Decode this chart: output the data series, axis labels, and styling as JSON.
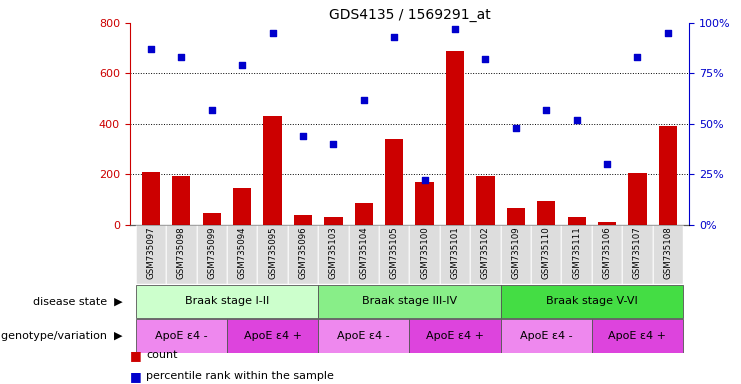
{
  "title": "GDS4135 / 1569291_at",
  "samples": [
    "GSM735097",
    "GSM735098",
    "GSM735099",
    "GSM735094",
    "GSM735095",
    "GSM735096",
    "GSM735103",
    "GSM735104",
    "GSM735105",
    "GSM735100",
    "GSM735101",
    "GSM735102",
    "GSM735109",
    "GSM735110",
    "GSM735111",
    "GSM735106",
    "GSM735107",
    "GSM735108"
  ],
  "counts": [
    210,
    195,
    45,
    145,
    430,
    40,
    30,
    85,
    340,
    170,
    690,
    195,
    65,
    95,
    30,
    10,
    205,
    390
  ],
  "percentile": [
    87,
    83,
    57,
    79,
    95,
    44,
    40,
    62,
    93,
    22,
    97,
    82,
    48,
    57,
    52,
    30,
    83,
    95
  ],
  "ylim_left": [
    0,
    800
  ],
  "ylim_right": [
    0,
    100
  ],
  "yticks_left": [
    0,
    200,
    400,
    600,
    800
  ],
  "yticks_right": [
    0,
    25,
    50,
    75,
    100
  ],
  "bar_color": "#cc0000",
  "dot_color": "#0000cc",
  "bg_color": "#ffffff",
  "disease_state_groups": [
    {
      "label": "Braak stage I-II",
      "start": 0,
      "end": 6,
      "color": "#ccffcc"
    },
    {
      "label": "Braak stage III-IV",
      "start": 6,
      "end": 12,
      "color": "#88ee88"
    },
    {
      "label": "Braak stage V-VI",
      "start": 12,
      "end": 18,
      "color": "#44dd44"
    }
  ],
  "genotype_groups": [
    {
      "label": "ApoE ε4 -",
      "start": 0,
      "end": 3,
      "color": "#ee88ee"
    },
    {
      "label": "ApoE ε4 +",
      "start": 3,
      "end": 6,
      "color": "#dd44dd"
    },
    {
      "label": "ApoE ε4 -",
      "start": 6,
      "end": 9,
      "color": "#ee88ee"
    },
    {
      "label": "ApoE ε4 +",
      "start": 9,
      "end": 12,
      "color": "#dd44dd"
    },
    {
      "label": "ApoE ε4 -",
      "start": 12,
      "end": 15,
      "color": "#ee88ee"
    },
    {
      "label": "ApoE ε4 +",
      "start": 15,
      "end": 18,
      "color": "#dd44dd"
    }
  ],
  "left_axis_color": "#cc0000",
  "right_axis_color": "#0000cc",
  "disease_row_label": "disease state",
  "genotype_row_label": "genotype/variation",
  "legend_count_label": "count",
  "legend_pct_label": "percentile rank within the sample",
  "xtick_bg": "#dddddd"
}
